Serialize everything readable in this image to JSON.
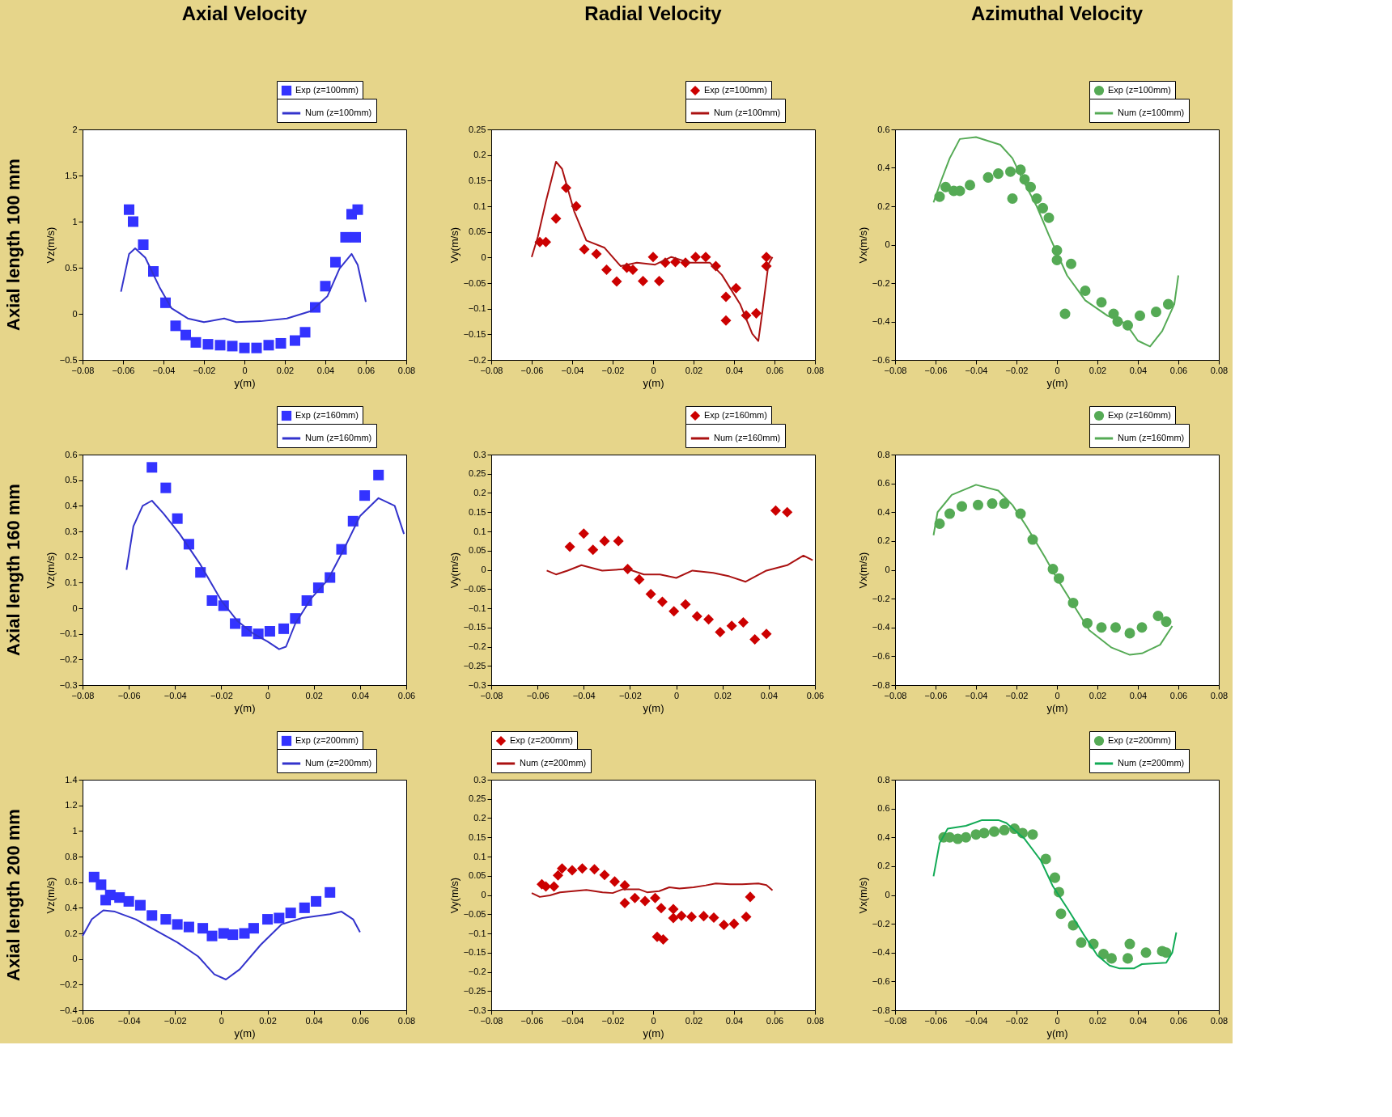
{
  "chart_data": [
    {
      "type": "scatter",
      "title": "Axial Velocity",
      "annotations": [
        "Axial length 100 mm"
      ],
      "xlabel": "y(m)",
      "ylabel": "Vz(m/s)",
      "xlim": [
        -0.08,
        0.08
      ],
      "xticks": [
        -0.08,
        -0.06,
        -0.04,
        -0.02,
        0,
        0.02,
        0.04,
        0.06,
        0.08
      ],
      "ylim": [
        -0.5,
        2
      ],
      "yticks": [
        -0.5,
        0,
        0.5,
        1,
        1.5,
        2
      ],
      "legend": "top right",
      "series": [
        {
          "name": "Exp (z=100mm)",
          "type": "scatter",
          "marker": "square",
          "color": "#3333ff",
          "x": [
            -0.057,
            -0.055,
            -0.05,
            -0.045,
            -0.039,
            -0.034,
            -0.029,
            -0.024,
            -0.018,
            -0.012,
            -0.006,
            0.0,
            0.006,
            0.012,
            0.018,
            0.025,
            0.03,
            0.035,
            0.04,
            0.045,
            0.05,
            0.055,
            0.053,
            0.056
          ],
          "values": [
            1.13,
            1.0,
            0.75,
            0.46,
            0.12,
            -0.13,
            -0.23,
            -0.31,
            -0.33,
            -0.34,
            -0.35,
            -0.37,
            -0.37,
            -0.34,
            -0.32,
            -0.29,
            -0.2,
            0.07,
            0.3,
            0.56,
            0.83,
            0.83,
            1.08,
            1.13
          ]
        },
        {
          "name": "Num (z=100mm)",
          "type": "line",
          "color": "#3333cc",
          "x": [
            -0.061,
            -0.057,
            -0.054,
            -0.049,
            -0.042,
            -0.036,
            -0.028,
            -0.02,
            -0.01,
            -0.004,
            0.008,
            0.021,
            0.033,
            0.041,
            0.047,
            0.053,
            0.056,
            0.06
          ],
          "values": [
            0.24,
            0.65,
            0.71,
            0.61,
            0.29,
            0.06,
            -0.05,
            -0.09,
            -0.05,
            -0.09,
            -0.08,
            -0.05,
            0.03,
            0.19,
            0.49,
            0.65,
            0.53,
            0.13
          ]
        }
      ]
    },
    {
      "type": "scatter",
      "title": "Radial Velocity",
      "xlabel": "y(m)",
      "ylabel": "Vy(m/s)",
      "xlim": [
        -0.08,
        0.08
      ],
      "xticks": [
        -0.08,
        -0.06,
        -0.04,
        -0.02,
        0,
        0.02,
        0.04,
        0.06,
        0.08
      ],
      "ylim": [
        -0.2,
        0.25
      ],
      "yticks": [
        -0.2,
        -0.15,
        -0.1,
        -0.05,
        0,
        0.05,
        0.1,
        0.15,
        0.2,
        0.25
      ],
      "legend": "top right",
      "series": [
        {
          "name": "Exp (z=100mm)",
          "type": "scatter",
          "marker": "diamond",
          "color": "#cc0000",
          "x": [
            -0.056,
            -0.053,
            -0.048,
            -0.043,
            -0.038,
            -0.034,
            -0.028,
            -0.023,
            -0.018,
            -0.013,
            -0.01,
            -0.005,
            0.0,
            0.003,
            0.006,
            0.011,
            0.016,
            0.021,
            0.026,
            0.031,
            0.036,
            0.036,
            0.041,
            0.046,
            0.051,
            0.056,
            0.056
          ],
          "values": [
            0.03,
            0.03,
            0.076,
            0.136,
            0.1,
            0.016,
            0.007,
            -0.024,
            -0.047,
            -0.02,
            -0.024,
            -0.046,
            0.001,
            -0.046,
            -0.01,
            -0.009,
            -0.01,
            0.001,
            0.001,
            -0.017,
            -0.077,
            -0.123,
            -0.06,
            -0.113,
            -0.109,
            0.001,
            -0.017
          ]
        },
        {
          "name": "Num (z=100mm)",
          "type": "line",
          "color": "#aa1111",
          "x": [
            -0.06,
            -0.057,
            -0.053,
            -0.048,
            -0.045,
            -0.039,
            -0.033,
            -0.024,
            -0.016,
            -0.008,
            0.001,
            0.009,
            0.018,
            0.028,
            0.034,
            0.043,
            0.049,
            0.052,
            0.054,
            0.057,
            0.059
          ],
          "values": [
            0.001,
            0.04,
            0.109,
            0.187,
            0.173,
            0.09,
            0.033,
            0.019,
            -0.017,
            -0.01,
            -0.014,
            0.001,
            -0.01,
            -0.01,
            -0.034,
            -0.091,
            -0.149,
            -0.163,
            -0.106,
            -0.013,
            0.001
          ]
        }
      ]
    },
    {
      "type": "scatter",
      "title": "Azimuthal Velocity",
      "xlabel": "y(m)",
      "ylabel": "Vx(m/s)",
      "xlim": [
        -0.08,
        0.08
      ],
      "xticks": [
        -0.08,
        -0.06,
        -0.04,
        -0.02,
        0,
        0.02,
        0.04,
        0.06,
        0.08
      ],
      "ylim": [
        -0.6,
        0.6
      ],
      "yticks": [
        -0.6,
        -0.4,
        -0.2,
        0,
        0.2,
        0.4,
        0.6
      ],
      "legend": "top right",
      "series": [
        {
          "name": "Exp (z=100mm)",
          "type": "scatter",
          "marker": "circle",
          "color": "#55aa55",
          "x": [
            -0.058,
            -0.055,
            -0.051,
            -0.048,
            -0.043,
            -0.034,
            -0.029,
            -0.023,
            -0.022,
            -0.018,
            -0.016,
            -0.013,
            -0.01,
            -0.007,
            -0.004,
            0.0,
            0.0,
            0.007,
            0.004,
            0.014,
            0.022,
            0.028,
            0.03,
            0.035,
            0.041,
            0.049,
            0.055
          ],
          "values": [
            0.25,
            0.3,
            0.28,
            0.28,
            0.31,
            0.35,
            0.37,
            0.38,
            0.24,
            0.39,
            0.34,
            0.3,
            0.24,
            0.19,
            0.14,
            -0.03,
            -0.08,
            -0.1,
            -0.36,
            -0.24,
            -0.3,
            -0.36,
            -0.4,
            -0.42,
            -0.37,
            -0.35,
            -0.31
          ]
        },
        {
          "name": "Num (z=100mm)",
          "type": "line",
          "color": "#55aa55",
          "x": [
            -0.061,
            -0.057,
            -0.053,
            -0.048,
            -0.04,
            -0.028,
            -0.022,
            -0.017,
            -0.01,
            -0.004,
            0.005,
            0.014,
            0.025,
            0.034,
            0.04,
            0.046,
            0.052,
            0.058,
            0.06
          ],
          "values": [
            0.22,
            0.34,
            0.45,
            0.55,
            0.56,
            0.52,
            0.45,
            0.34,
            0.2,
            0.05,
            -0.16,
            -0.29,
            -0.37,
            -0.41,
            -0.5,
            -0.53,
            -0.45,
            -0.31,
            -0.16
          ]
        }
      ]
    },
    {
      "type": "scatter",
      "annotations": [
        "Axial length 160 mm"
      ],
      "xlabel": "y(m)",
      "ylabel": "Vz(m/s)",
      "xlim": [
        -0.08,
        0.06
      ],
      "xticks": [
        -0.08,
        -0.06,
        -0.04,
        -0.02,
        0,
        0.02,
        0.04,
        0.06
      ],
      "ylim": [
        -0.3,
        0.6
      ],
      "yticks": [
        -0.3,
        -0.2,
        -0.1,
        0,
        0.1,
        0.2,
        0.3,
        0.4,
        0.5,
        0.6
      ],
      "legend": "top right",
      "series": [
        {
          "name": "Exp (z=160mm)",
          "type": "scatter",
          "marker": "square",
          "color": "#3333ff",
          "x": [
            -0.05,
            -0.044,
            -0.039,
            -0.034,
            -0.029,
            -0.024,
            -0.019,
            -0.014,
            -0.009,
            -0.004,
            0.001,
            0.007,
            0.012,
            0.017,
            0.022,
            0.027,
            0.032,
            0.037,
            0.042,
            0.048
          ],
          "values": [
            0.55,
            0.47,
            0.35,
            0.25,
            0.14,
            0.03,
            0.01,
            -0.06,
            -0.09,
            -0.1,
            -0.09,
            -0.08,
            -0.04,
            0.03,
            0.08,
            0.12,
            0.23,
            0.34,
            0.44,
            0.52
          ]
        },
        {
          "name": "Num (z=160mm)",
          "type": "line",
          "color": "#3333cc",
          "x": [
            -0.061,
            -0.058,
            -0.054,
            -0.05,
            -0.045,
            -0.038,
            -0.029,
            -0.02,
            -0.013,
            -0.006,
            0.0,
            0.005,
            0.008,
            0.012,
            0.019,
            0.026,
            0.033,
            0.04,
            0.048,
            0.055,
            0.059
          ],
          "values": [
            0.15,
            0.32,
            0.4,
            0.42,
            0.37,
            0.29,
            0.17,
            0.03,
            -0.05,
            -0.1,
            -0.13,
            -0.16,
            -0.15,
            -0.06,
            0.04,
            0.11,
            0.23,
            0.36,
            0.43,
            0.4,
            0.29
          ]
        }
      ]
    },
    {
      "type": "scatter",
      "xlabel": "y(m)",
      "ylabel": "Vy(m/s)",
      "xlim": [
        -0.08,
        0.06
      ],
      "xticks": [
        -0.08,
        -0.06,
        -0.04,
        -0.02,
        0,
        0.02,
        0.04,
        0.06
      ],
      "ylim": [
        -0.3,
        0.3
      ],
      "yticks": [
        -0.3,
        -0.25,
        -0.2,
        -0.15,
        -0.1,
        -0.05,
        0,
        0.05,
        0.1,
        0.15,
        0.2,
        0.25,
        0.3
      ],
      "legend": "top right",
      "series": [
        {
          "name": "Exp (z=160mm)",
          "type": "scatter",
          "marker": "diamond",
          "color": "#cc0000",
          "x": [
            -0.046,
            -0.04,
            -0.036,
            -0.031,
            -0.025,
            -0.021,
            -0.016,
            -0.011,
            -0.006,
            -0.001,
            0.004,
            0.009,
            0.014,
            0.019,
            0.024,
            0.029,
            0.034,
            0.039,
            0.043,
            0.048
          ],
          "values": [
            0.06,
            0.094,
            0.052,
            0.075,
            0.075,
            0.002,
            -0.025,
            -0.063,
            -0.083,
            -0.108,
            -0.09,
            -0.121,
            -0.129,
            -0.162,
            -0.146,
            -0.137,
            -0.181,
            -0.167,
            0.154,
            0.15
          ]
        },
        {
          "name": "Num (z=160mm)",
          "type": "line",
          "color": "#aa1111",
          "x": [
            -0.056,
            -0.052,
            -0.047,
            -0.041,
            -0.032,
            -0.021,
            -0.014,
            -0.007,
            0.0,
            0.007,
            0.016,
            0.023,
            0.03,
            0.039,
            0.048,
            0.055,
            0.059
          ],
          "values": [
            -0.002,
            -0.012,
            -0.002,
            0.012,
            -0.002,
            0.002,
            -0.012,
            -0.012,
            -0.021,
            -0.002,
            -0.008,
            -0.017,
            -0.031,
            -0.002,
            0.012,
            0.037,
            0.025
          ]
        }
      ]
    },
    {
      "type": "scatter",
      "xlabel": "y(m)",
      "ylabel": "Vx(m/s)",
      "xlim": [
        -0.08,
        0.08
      ],
      "xticks": [
        -0.08,
        -0.06,
        -0.04,
        -0.02,
        0,
        0.02,
        0.04,
        0.06,
        0.08
      ],
      "ylim": [
        -0.8,
        0.8
      ],
      "yticks": [
        -0.8,
        -0.6,
        -0.4,
        -0.2,
        0,
        0.2,
        0.4,
        0.6,
        0.8
      ],
      "legend": "top right",
      "series": [
        {
          "name": "Exp (z=160mm)",
          "type": "scatter",
          "marker": "circle",
          "color": "#55aa55",
          "x": [
            -0.058,
            -0.053,
            -0.047,
            -0.039,
            -0.032,
            -0.026,
            -0.018,
            -0.012,
            -0.002,
            0.001,
            0.008,
            0.015,
            0.022,
            0.029,
            0.036,
            0.042,
            0.05,
            0.054
          ],
          "values": [
            0.32,
            0.39,
            0.44,
            0.45,
            0.46,
            0.46,
            0.39,
            0.21,
            0.005,
            -0.06,
            -0.23,
            -0.37,
            -0.4,
            -0.4,
            -0.44,
            -0.4,
            -0.32,
            -0.36
          ]
        },
        {
          "name": "Num (z=160mm)",
          "type": "line",
          "color": "#55aa55",
          "x": [
            -0.061,
            -0.059,
            -0.052,
            -0.04,
            -0.029,
            -0.022,
            -0.015,
            -0.006,
            0.0,
            0.008,
            0.016,
            0.027,
            0.036,
            0.042,
            0.051,
            0.057
          ],
          "values": [
            0.24,
            0.4,
            0.52,
            0.59,
            0.55,
            0.45,
            0.3,
            0.09,
            -0.06,
            -0.24,
            -0.42,
            -0.54,
            -0.59,
            -0.58,
            -0.52,
            -0.39
          ]
        }
      ]
    },
    {
      "type": "scatter",
      "annotations": [
        "Axial length 200 mm"
      ],
      "xlabel": "y(m)",
      "ylabel": "Vz(m/s)",
      "xlim": [
        -0.06,
        0.08
      ],
      "xticks": [
        -0.06,
        -0.04,
        -0.02,
        0,
        0.02,
        0.04,
        0.06,
        0.08
      ],
      "ylim": [
        -0.4,
        1.4
      ],
      "yticks": [
        -0.4,
        -0.2,
        0,
        0.2,
        0.4,
        0.6,
        0.8,
        1,
        1.2,
        1.4
      ],
      "legend": "top right",
      "series": [
        {
          "name": "Exp (z=200mm)",
          "type": "scatter",
          "marker": "square",
          "color": "#3333ff",
          "x": [
            -0.055,
            -0.052,
            -0.05,
            -0.048,
            -0.044,
            -0.04,
            -0.035,
            -0.03,
            -0.024,
            -0.019,
            -0.014,
            -0.008,
            -0.004,
            0.001,
            0.005,
            0.01,
            0.014,
            0.02,
            0.025,
            0.03,
            0.036,
            0.041,
            0.047
          ],
          "values": [
            0.64,
            0.58,
            0.46,
            0.5,
            0.48,
            0.45,
            0.42,
            0.34,
            0.31,
            0.27,
            0.25,
            0.24,
            0.18,
            0.2,
            0.19,
            0.2,
            0.24,
            0.31,
            0.32,
            0.36,
            0.4,
            0.45,
            0.52
          ]
        },
        {
          "name": "Num (z=200mm)",
          "type": "line",
          "color": "#3333cc",
          "x": [
            -0.06,
            -0.056,
            -0.051,
            -0.046,
            -0.037,
            -0.028,
            -0.019,
            -0.01,
            -0.003,
            0.002,
            0.008,
            0.017,
            0.026,
            0.035,
            0.047,
            0.052,
            0.057,
            0.06
          ],
          "values": [
            0.18,
            0.31,
            0.38,
            0.37,
            0.31,
            0.22,
            0.13,
            0.02,
            -0.12,
            -0.16,
            -0.08,
            0.11,
            0.27,
            0.32,
            0.35,
            0.37,
            0.31,
            0.21
          ]
        }
      ]
    },
    {
      "type": "scatter",
      "xlabel": "y(m)",
      "ylabel": "Vy(m/s)",
      "xlim": [
        -0.08,
        0.08
      ],
      "xticks": [
        -0.08,
        -0.06,
        -0.04,
        -0.02,
        0,
        0.02,
        0.04,
        0.06,
        0.08
      ],
      "ylim": [
        -0.3,
        0.3
      ],
      "yticks": [
        -0.3,
        -0.25,
        -0.2,
        -0.15,
        -0.1,
        -0.05,
        0,
        0.05,
        0.1,
        0.15,
        0.2,
        0.25,
        0.3
      ],
      "legend": "top left",
      "series": [
        {
          "name": "Exp (z=200mm)",
          "type": "scatter",
          "marker": "diamond",
          "color": "#cc0000",
          "x": [
            -0.055,
            -0.053,
            -0.049,
            -0.047,
            -0.045,
            -0.04,
            -0.035,
            -0.029,
            -0.024,
            -0.019,
            -0.014,
            -0.014,
            -0.009,
            -0.004,
            0.001,
            0.002,
            0.005,
            0.004,
            0.01,
            0.01,
            0.014,
            0.019,
            0.025,
            0.03,
            0.035,
            0.04,
            0.046,
            0.048
          ],
          "values": [
            0.028,
            0.022,
            0.022,
            0.051,
            0.069,
            0.064,
            0.069,
            0.067,
            0.052,
            0.035,
            0.025,
            -0.021,
            -0.008,
            -0.016,
            -0.008,
            -0.109,
            -0.116,
            -0.034,
            -0.037,
            -0.06,
            -0.054,
            -0.057,
            -0.055,
            -0.059,
            -0.078,
            -0.075,
            -0.057,
            -0.005
          ]
        },
        {
          "name": "Num (z=200mm)",
          "type": "line",
          "color": "#aa1111",
          "x": [
            -0.06,
            -0.056,
            -0.051,
            -0.046,
            -0.033,
            -0.025,
            -0.02,
            -0.015,
            -0.007,
            -0.003,
            0.003,
            0.008,
            0.013,
            0.02,
            0.026,
            0.031,
            0.038,
            0.044,
            0.052,
            0.056,
            0.059
          ],
          "values": [
            0.005,
            -0.005,
            -0.001,
            0.007,
            0.013,
            0.007,
            0.005,
            0.015,
            0.015,
            0.007,
            0.01,
            0.02,
            0.017,
            0.02,
            0.025,
            0.03,
            0.028,
            0.028,
            0.03,
            0.026,
            0.012
          ]
        }
      ]
    },
    {
      "type": "scatter",
      "xlabel": "y(m)",
      "ylabel": "Vx(m/s)",
      "xlim": [
        -0.08,
        0.08
      ],
      "xticks": [
        -0.08,
        -0.06,
        -0.04,
        -0.02,
        0,
        0.02,
        0.04,
        0.06,
        0.08
      ],
      "ylim": [
        -0.8,
        0.8
      ],
      "yticks": [
        -0.8,
        -0.6,
        -0.4,
        -0.2,
        0,
        0.2,
        0.4,
        0.6,
        0.8
      ],
      "legend": "top right",
      "series": [
        {
          "name": "Exp (z=200mm)",
          "type": "scatter",
          "marker": "circle",
          "color": "#55aa55",
          "x": [
            -0.056,
            -0.053,
            -0.049,
            -0.045,
            -0.04,
            -0.036,
            -0.031,
            -0.026,
            -0.021,
            -0.017,
            -0.012,
            -0.0055,
            -0.001,
            0.001,
            0.002,
            0.008,
            0.012,
            0.018,
            0.023,
            0.027,
            0.035,
            0.036,
            0.044,
            0.052,
            0.054
          ],
          "values": [
            0.4,
            0.4,
            0.39,
            0.4,
            0.42,
            0.43,
            0.44,
            0.45,
            0.46,
            0.43,
            0.42,
            0.25,
            0.12,
            0.02,
            -0.13,
            -0.21,
            -0.33,
            -0.34,
            -0.41,
            -0.44,
            -0.44,
            -0.34,
            -0.4,
            -0.39,
            -0.4
          ]
        },
        {
          "name": "Num (z=200mm)",
          "type": "line",
          "color": "#11aa55",
          "x": [
            -0.061,
            -0.058,
            -0.054,
            -0.045,
            -0.037,
            -0.029,
            -0.025,
            -0.016,
            -0.008,
            -0.002,
            0.005,
            0.013,
            0.02,
            0.026,
            0.031,
            0.038,
            0.042,
            0.054,
            0.057,
            0.059
          ],
          "values": [
            0.13,
            0.36,
            0.46,
            0.48,
            0.52,
            0.52,
            0.5,
            0.39,
            0.24,
            0.06,
            -0.09,
            -0.27,
            -0.42,
            -0.49,
            -0.51,
            -0.51,
            -0.48,
            -0.47,
            -0.4,
            -0.26
          ]
        }
      ]
    }
  ]
}
